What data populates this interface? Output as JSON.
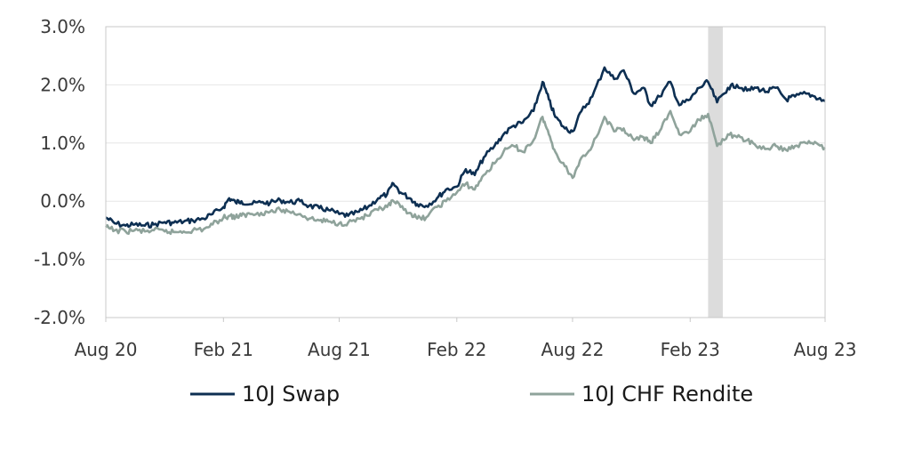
{
  "chart_data": {
    "type": "line",
    "title": "",
    "xlabel": "",
    "ylabel": "",
    "x_range": [
      "2020-08-01",
      "2023-08-31"
    ],
    "x_ticks": [
      {
        "date": "2020-08-01",
        "label": "Aug 20"
      },
      {
        "date": "2021-02-01",
        "label": "Feb 21"
      },
      {
        "date": "2021-08-01",
        "label": "Aug 21"
      },
      {
        "date": "2022-02-01",
        "label": "Feb 22"
      },
      {
        "date": "2022-08-01",
        "label": "Aug 22"
      },
      {
        "date": "2023-02-01",
        "label": "Feb 23"
      },
      {
        "date": "2023-08-31",
        "label": "Aug 23"
      }
    ],
    "ylim": [
      -2.0,
      3.0
    ],
    "y_ticks": [
      {
        "value": 3.0,
        "label": "3.0%"
      },
      {
        "value": 2.0,
        "label": "2.0%"
      },
      {
        "value": 1.0,
        "label": "1.0%"
      },
      {
        "value": 0.0,
        "label": "0.0%"
      },
      {
        "value": -1.0,
        "label": "-1.0%"
      },
      {
        "value": -2.0,
        "label": "-2.0%"
      }
    ],
    "grid": true,
    "legend_position": "bottom",
    "highlight_band": {
      "x_start": "2023-03-01",
      "x_end": "2023-03-24",
      "color": "#dcdcdc"
    },
    "series": [
      {
        "name": "10J Swap",
        "color": "#0d2f52",
        "points": [
          [
            "2020-08-01",
            -0.28
          ],
          [
            "2020-08-15",
            -0.38
          ],
          [
            "2020-09-01",
            -0.42
          ],
          [
            "2020-09-15",
            -0.4
          ],
          [
            "2020-10-01",
            -0.42
          ],
          [
            "2020-10-15",
            -0.4
          ],
          [
            "2020-11-01",
            -0.36
          ],
          [
            "2020-11-15",
            -0.37
          ],
          [
            "2020-12-01",
            -0.35
          ],
          [
            "2020-12-15",
            -0.33
          ],
          [
            "2021-01-01",
            -0.3
          ],
          [
            "2021-01-15",
            -0.22
          ],
          [
            "2021-02-01",
            -0.1
          ],
          [
            "2021-02-10",
            0.05
          ],
          [
            "2021-02-20",
            -0.02
          ],
          [
            "2021-03-01",
            0.0
          ],
          [
            "2021-03-15",
            -0.05
          ],
          [
            "2021-04-01",
            -0.02
          ],
          [
            "2021-04-15",
            -0.03
          ],
          [
            "2021-05-01",
            0.02
          ],
          [
            "2021-05-15",
            -0.02
          ],
          [
            "2021-06-01",
            0.0
          ],
          [
            "2021-06-15",
            -0.08
          ],
          [
            "2021-07-01",
            -0.12
          ],
          [
            "2021-07-15",
            -0.15
          ],
          [
            "2021-08-01",
            -0.22
          ],
          [
            "2021-08-15",
            -0.25
          ],
          [
            "2021-09-01",
            -0.18
          ],
          [
            "2021-09-15",
            -0.1
          ],
          [
            "2021-10-01",
            0.05
          ],
          [
            "2021-10-15",
            0.12
          ],
          [
            "2021-10-25",
            0.3
          ],
          [
            "2021-11-05",
            0.15
          ],
          [
            "2021-11-20",
            0.05
          ],
          [
            "2021-12-01",
            -0.05
          ],
          [
            "2021-12-15",
            -0.08
          ],
          [
            "2022-01-01",
            0.05
          ],
          [
            "2022-01-15",
            0.2
          ],
          [
            "2022-02-01",
            0.25
          ],
          [
            "2022-02-15",
            0.55
          ],
          [
            "2022-03-01",
            0.45
          ],
          [
            "2022-03-15",
            0.75
          ],
          [
            "2022-04-01",
            0.95
          ],
          [
            "2022-04-15",
            1.15
          ],
          [
            "2022-05-01",
            1.3
          ],
          [
            "2022-05-15",
            1.35
          ],
          [
            "2022-06-01",
            1.55
          ],
          [
            "2022-06-15",
            2.05
          ],
          [
            "2022-06-25",
            1.75
          ],
          [
            "2022-07-05",
            1.45
          ],
          [
            "2022-07-20",
            1.25
          ],
          [
            "2022-08-01",
            1.2
          ],
          [
            "2022-08-15",
            1.55
          ],
          [
            "2022-09-01",
            1.8
          ],
          [
            "2022-09-20",
            2.3
          ],
          [
            "2022-10-05",
            2.1
          ],
          [
            "2022-10-20",
            2.25
          ],
          [
            "2022-11-05",
            1.85
          ],
          [
            "2022-11-20",
            1.95
          ],
          [
            "2022-12-01",
            1.65
          ],
          [
            "2022-12-15",
            1.8
          ],
          [
            "2023-01-01",
            2.05
          ],
          [
            "2023-01-15",
            1.65
          ],
          [
            "2023-02-01",
            1.75
          ],
          [
            "2023-02-15",
            1.95
          ],
          [
            "2023-03-01",
            2.05
          ],
          [
            "2023-03-15",
            1.7
          ],
          [
            "2023-04-01",
            1.95
          ],
          [
            "2023-04-15",
            2.0
          ],
          [
            "2023-05-01",
            1.9
          ],
          [
            "2023-05-15",
            1.95
          ],
          [
            "2023-06-01",
            1.88
          ],
          [
            "2023-06-15",
            1.95
          ],
          [
            "2023-07-01",
            1.75
          ],
          [
            "2023-07-15",
            1.8
          ],
          [
            "2023-08-01",
            1.85
          ],
          [
            "2023-08-15",
            1.8
          ],
          [
            "2023-08-31",
            1.72
          ]
        ]
      },
      {
        "name": "10J CHF Rendite",
        "color": "#8fa39b",
        "points": [
          [
            "2020-08-01",
            -0.45
          ],
          [
            "2020-08-15",
            -0.5
          ],
          [
            "2020-09-01",
            -0.52
          ],
          [
            "2020-09-15",
            -0.5
          ],
          [
            "2020-10-01",
            -0.52
          ],
          [
            "2020-10-15",
            -0.5
          ],
          [
            "2020-11-01",
            -0.52
          ],
          [
            "2020-11-15",
            -0.53
          ],
          [
            "2020-12-01",
            -0.52
          ],
          [
            "2020-12-15",
            -0.5
          ],
          [
            "2021-01-01",
            -0.48
          ],
          [
            "2021-01-15",
            -0.4
          ],
          [
            "2021-02-01",
            -0.28
          ],
          [
            "2021-02-10",
            -0.25
          ],
          [
            "2021-02-20",
            -0.27
          ],
          [
            "2021-03-01",
            -0.25
          ],
          [
            "2021-03-15",
            -0.22
          ],
          [
            "2021-04-01",
            -0.2
          ],
          [
            "2021-04-15",
            -0.18
          ],
          [
            "2021-05-01",
            -0.15
          ],
          [
            "2021-05-15",
            -0.18
          ],
          [
            "2021-06-01",
            -0.22
          ],
          [
            "2021-06-15",
            -0.3
          ],
          [
            "2021-07-01",
            -0.33
          ],
          [
            "2021-07-15",
            -0.35
          ],
          [
            "2021-08-01",
            -0.38
          ],
          [
            "2021-08-15",
            -0.37
          ],
          [
            "2021-09-01",
            -0.3
          ],
          [
            "2021-09-15",
            -0.25
          ],
          [
            "2021-10-01",
            -0.15
          ],
          [
            "2021-10-15",
            -0.1
          ],
          [
            "2021-10-25",
            0.0
          ],
          [
            "2021-11-05",
            -0.1
          ],
          [
            "2021-11-20",
            -0.2
          ],
          [
            "2021-12-01",
            -0.3
          ],
          [
            "2021-12-15",
            -0.28
          ],
          [
            "2022-01-01",
            -0.1
          ],
          [
            "2022-01-15",
            0.0
          ],
          [
            "2022-02-01",
            0.15
          ],
          [
            "2022-02-15",
            0.3
          ],
          [
            "2022-03-01",
            0.2
          ],
          [
            "2022-03-15",
            0.45
          ],
          [
            "2022-04-01",
            0.65
          ],
          [
            "2022-04-15",
            0.85
          ],
          [
            "2022-05-01",
            0.95
          ],
          [
            "2022-05-15",
            0.85
          ],
          [
            "2022-06-01",
            1.05
          ],
          [
            "2022-06-15",
            1.45
          ],
          [
            "2022-06-25",
            1.15
          ],
          [
            "2022-07-05",
            0.85
          ],
          [
            "2022-07-20",
            0.6
          ],
          [
            "2022-08-01",
            0.4
          ],
          [
            "2022-08-15",
            0.75
          ],
          [
            "2022-09-01",
            0.95
          ],
          [
            "2022-09-20",
            1.45
          ],
          [
            "2022-10-05",
            1.2
          ],
          [
            "2022-10-20",
            1.25
          ],
          [
            "2022-11-05",
            1.05
          ],
          [
            "2022-11-20",
            1.1
          ],
          [
            "2022-12-01",
            1.0
          ],
          [
            "2022-12-15",
            1.2
          ],
          [
            "2023-01-01",
            1.55
          ],
          [
            "2023-01-15",
            1.15
          ],
          [
            "2023-02-01",
            1.2
          ],
          [
            "2023-02-15",
            1.4
          ],
          [
            "2023-03-01",
            1.5
          ],
          [
            "2023-03-15",
            0.95
          ],
          [
            "2023-04-01",
            1.15
          ],
          [
            "2023-04-15",
            1.1
          ],
          [
            "2023-05-01",
            1.05
          ],
          [
            "2023-05-15",
            0.95
          ],
          [
            "2023-06-01",
            0.9
          ],
          [
            "2023-06-15",
            0.95
          ],
          [
            "2023-07-01",
            0.88
          ],
          [
            "2023-07-15",
            0.95
          ],
          [
            "2023-08-01",
            1.0
          ],
          [
            "2023-08-15",
            1.02
          ],
          [
            "2023-08-31",
            0.92
          ]
        ]
      }
    ]
  }
}
